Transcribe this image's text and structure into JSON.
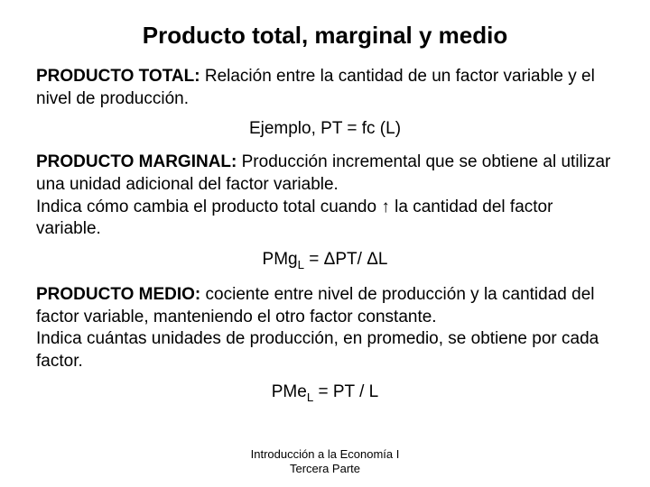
{
  "title": "Producto total, marginal y medio",
  "total": {
    "label": "PRODUCTO TOTAL:",
    "text": " Relación entre la cantidad de un factor variable y el nivel de producción."
  },
  "total_formula": "Ejemplo, PT = fc (L)",
  "marginal": {
    "label": "PRODUCTO MARGINAL:",
    "text1": " Producción incremental que se obtiene al utilizar una unidad adicional del factor variable.",
    "text2a": "Indica cómo cambia el producto total cuando ",
    "arrow": "↑",
    "text2b": " la cantidad del factor variable."
  },
  "marginal_formula": {
    "p1": "PMg",
    "sub": "L",
    "p2": " = ΔPT/ ΔL"
  },
  "medio": {
    "label": "PRODUCTO MEDIO:",
    "text1": " cociente entre nivel de producción y la cantidad del factor variable, manteniendo el otro factor constante.",
    "text2": "Indica cuántas unidades de producción, en promedio, se obtiene por cada factor."
  },
  "medio_formula": {
    "p1": "PMe",
    "sub": "L",
    "p2": " = PT / L"
  },
  "footer": {
    "line1": "Introducción a la Economía I",
    "line2": "Tercera Parte"
  }
}
